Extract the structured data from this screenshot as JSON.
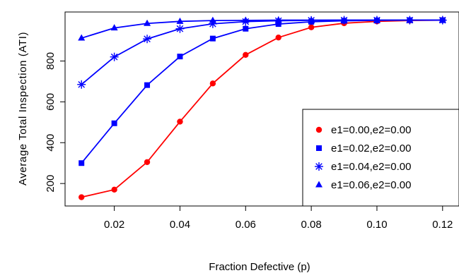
{
  "chart_data": {
    "type": "line",
    "title": "",
    "xlabel": "Fraction Defective (p)",
    "ylabel": "Average Total Inspection (ATI)",
    "xlim": [
      0.005,
      0.125
    ],
    "ylim": [
      90,
      1040
    ],
    "xticks": [
      0.02,
      0.04,
      0.06,
      0.08,
      0.1,
      0.12
    ],
    "xtick_labels": [
      "0.02",
      "0.04",
      "0.06",
      "0.08",
      "0.10",
      "0.12"
    ],
    "yticks": [
      200,
      400,
      600,
      800
    ],
    "ytick_labels": [
      "200",
      "400",
      "600",
      "800"
    ],
    "x": [
      0.01,
      0.02,
      0.03,
      0.04,
      0.05,
      0.06,
      0.07,
      0.08,
      0.09,
      0.1,
      0.11,
      0.12
    ],
    "series": [
      {
        "name": "e1=0.00,e2=0.00",
        "color": "#ff0000",
        "marker": "circle",
        "values": [
          133,
          170,
          305,
          503,
          690,
          830,
          915,
          965,
          985,
          994,
          998,
          1000
        ]
      },
      {
        "name": "e1=0.02,e2=0.00",
        "color": "#0000ff",
        "marker": "square",
        "values": [
          300,
          495,
          682,
          822,
          910,
          958,
          981,
          992,
          997,
          999,
          1000,
          1000
        ]
      },
      {
        "name": "e1=0.04,e2=0.00",
        "color": "#0000ff",
        "marker": "asterisk",
        "values": [
          685,
          820,
          908,
          958,
          982,
          993,
          997,
          999,
          1000,
          1000,
          1000,
          1000
        ]
      },
      {
        "name": "e1=0.06,e2=0.00",
        "color": "#0000ff",
        "marker": "triangle",
        "values": [
          912,
          962,
          984,
          994,
          998,
          999,
          1000,
          1000,
          1000,
          1000,
          1000,
          1000
        ]
      }
    ],
    "legend_position": "bottom-right",
    "grid": false
  }
}
